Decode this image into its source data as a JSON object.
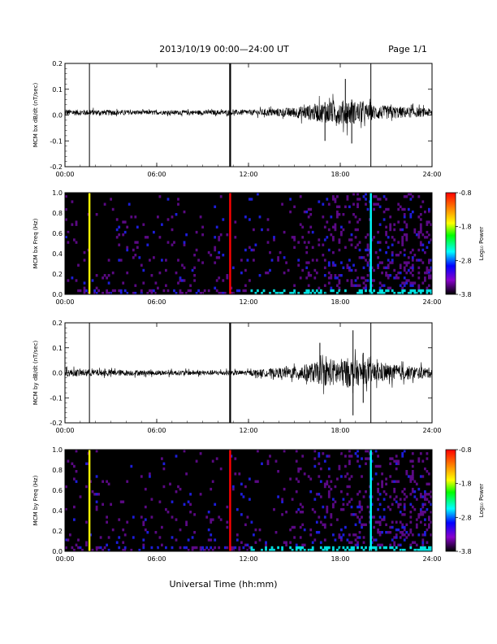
{
  "header": {
    "title": "2013/10/19   00:00—24:00 UT",
    "page": "Page 1/1"
  },
  "x_axis_title": "Universal Time (hh:mm)",
  "chart_data": [
    {
      "type": "line",
      "ylabel": "MCM bx dB/dt (nT/sec)",
      "ylim": [
        -0.2,
        0.2
      ],
      "yticks": [
        "-0.2",
        "-0.1",
        "0.0",
        "0.1",
        "0.2"
      ],
      "xlim": [
        "00:00",
        "24:00"
      ],
      "xticks": [
        "00:00",
        "06:00",
        "12:00",
        "18:00",
        "24:00"
      ],
      "baseline": 0.01,
      "noise_envelope": [
        {
          "x": "00:00",
          "amp": 0.012
        },
        {
          "x": "06:00",
          "amp": 0.008
        },
        {
          "x": "12:00",
          "amp": 0.01
        },
        {
          "x": "15:00",
          "amp": 0.02
        },
        {
          "x": "17:00",
          "amp": 0.04
        },
        {
          "x": "18:30",
          "amp": 0.05
        },
        {
          "x": "20:00",
          "amp": 0.03
        },
        {
          "x": "24:00",
          "amp": 0.015
        }
      ],
      "spikes": [
        {
          "x": "01:36",
          "ymin": -0.2,
          "ymax": 0.2
        },
        {
          "x": "10:48",
          "ymin": -0.2,
          "ymax": 0.2
        },
        {
          "x": "20:00",
          "ymin": -0.2,
          "ymax": 0.2
        },
        {
          "x": "18:20",
          "ymin": -0.02,
          "ymax": 0.14
        },
        {
          "x": "17:00",
          "ymin": -0.1,
          "ymax": 0.05
        },
        {
          "x": "18:45",
          "ymin": -0.11,
          "ymax": 0.06
        }
      ]
    },
    {
      "type": "heatmap",
      "ylabel": "MCM bx Freq (Hz)",
      "ylim": [
        0.0,
        1.0
      ],
      "yticks": [
        "0.0",
        "0.2",
        "0.4",
        "0.6",
        "0.8",
        "1.0"
      ],
      "xlim": [
        "00:00",
        "24:00"
      ],
      "xticks": [
        "00:00",
        "06:00",
        "12:00",
        "18:00",
        "24:00"
      ],
      "colorbar": {
        "label": "Log₁₀ Power",
        "range": [
          -3.8,
          -0.8
        ],
        "ticks": [
          "-0.8",
          "-1.8",
          "-2.8",
          "-3.8"
        ],
        "colors": [
          "#ff0000",
          "#ff8800",
          "#ffff00",
          "#00ff00",
          "#00ffff",
          "#0000ff",
          "#8800cc",
          "#000000"
        ]
      },
      "vertical_bands": [
        {
          "x": "01:36",
          "level": -1.8
        },
        {
          "x": "10:48",
          "level": -1.0
        },
        {
          "x": "20:00",
          "level": -2.5
        }
      ]
    },
    {
      "type": "line",
      "ylabel": "MCM by dB/dt (nT/sec)",
      "ylim": [
        -0.2,
        0.2
      ],
      "yticks": [
        "-0.2",
        "-0.1",
        "0.0",
        "0.1",
        "0.2"
      ],
      "xlim": [
        "00:00",
        "24:00"
      ],
      "xticks": [
        "00:00",
        "06:00",
        "12:00",
        "18:00",
        "24:00"
      ],
      "baseline": 0.0,
      "noise_envelope": [
        {
          "x": "00:00",
          "amp": 0.015
        },
        {
          "x": "06:00",
          "amp": 0.01
        },
        {
          "x": "12:00",
          "amp": 0.01
        },
        {
          "x": "15:00",
          "amp": 0.025
        },
        {
          "x": "17:00",
          "amp": 0.05
        },
        {
          "x": "18:30",
          "amp": 0.06
        },
        {
          "x": "20:00",
          "amp": 0.04
        },
        {
          "x": "24:00",
          "amp": 0.02
        }
      ],
      "spikes": [
        {
          "x": "01:36",
          "ymin": -0.2,
          "ymax": 0.2
        },
        {
          "x": "10:48",
          "ymin": -0.2,
          "ymax": 0.2
        },
        {
          "x": "20:00",
          "ymin": -0.2,
          "ymax": 0.2
        },
        {
          "x": "18:50",
          "ymin": -0.17,
          "ymax": 0.17
        },
        {
          "x": "16:40",
          "ymin": -0.03,
          "ymax": 0.12
        },
        {
          "x": "19:30",
          "ymin": -0.12,
          "ymax": 0.08
        }
      ]
    },
    {
      "type": "heatmap",
      "ylabel": "MCM by Freq (Hz)",
      "ylim": [
        0.0,
        1.0
      ],
      "yticks": [
        "0.0",
        "0.2",
        "0.4",
        "0.6",
        "0.8",
        "1.0"
      ],
      "xlim": [
        "00:00",
        "24:00"
      ],
      "xticks": [
        "00:00",
        "06:00",
        "12:00",
        "18:00",
        "24:00"
      ],
      "colorbar": {
        "label": "Log₁₀ Power",
        "range": [
          -3.8,
          -0.8
        ],
        "ticks": [
          "-0.8",
          "-1.8",
          "-2.8",
          "-3.8"
        ],
        "colors": [
          "#ff0000",
          "#ff8800",
          "#ffff00",
          "#00ff00",
          "#00ffff",
          "#0000ff",
          "#8800cc",
          "#000000"
        ]
      },
      "vertical_bands": [
        {
          "x": "01:36",
          "level": -1.8
        },
        {
          "x": "10:48",
          "level": -1.0
        },
        {
          "x": "20:00",
          "level": -2.5
        }
      ]
    }
  ]
}
